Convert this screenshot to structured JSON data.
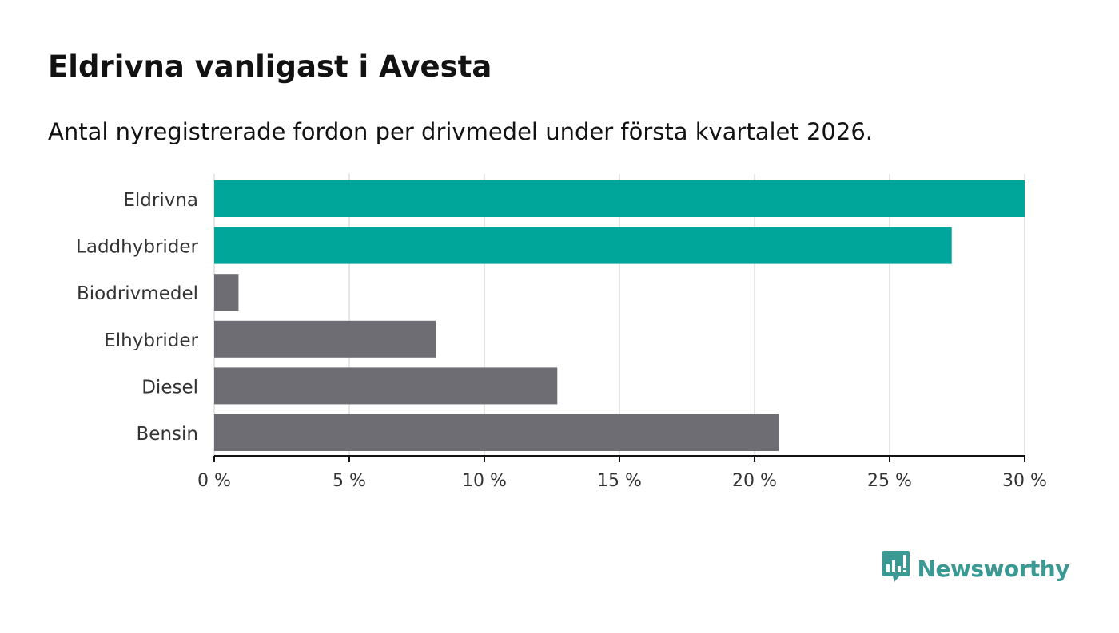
{
  "header": {
    "title": "Eldrivna vanligast i Avesta",
    "subtitle": "Antal nyregistrerade fordon per drivmedel under första kvartalet 2026."
  },
  "brand": {
    "name": "Newsworthy",
    "logo_icon": "bar-chart-speech-bubble-icon",
    "color": "#3a9a93"
  },
  "colors": {
    "highlight": "#00a69a",
    "default": "#6e6d74",
    "grid": "#dddddd",
    "axis": "#121212",
    "text": "#333333"
  },
  "chart_data": {
    "type": "bar",
    "orientation": "horizontal",
    "title": "Eldrivna vanligast i Avesta",
    "subtitle": "Antal nyregistrerade fordon per drivmedel under första kvartalet 2026.",
    "categories": [
      "Eldrivna",
      "Laddhybrider",
      "Biodrivmedel",
      "Elhybrider",
      "Diesel",
      "Bensin"
    ],
    "values": [
      30.0,
      27.3,
      0.9,
      8.2,
      12.7,
      20.9
    ],
    "highlighted": [
      true,
      true,
      false,
      false,
      false,
      false
    ],
    "xlabel": "",
    "ylabel": "",
    "xlim": [
      0,
      30
    ],
    "xticks": [
      0,
      5,
      10,
      15,
      20,
      25,
      30
    ],
    "tick_suffix": " %",
    "grid": true,
    "legend": "none"
  }
}
